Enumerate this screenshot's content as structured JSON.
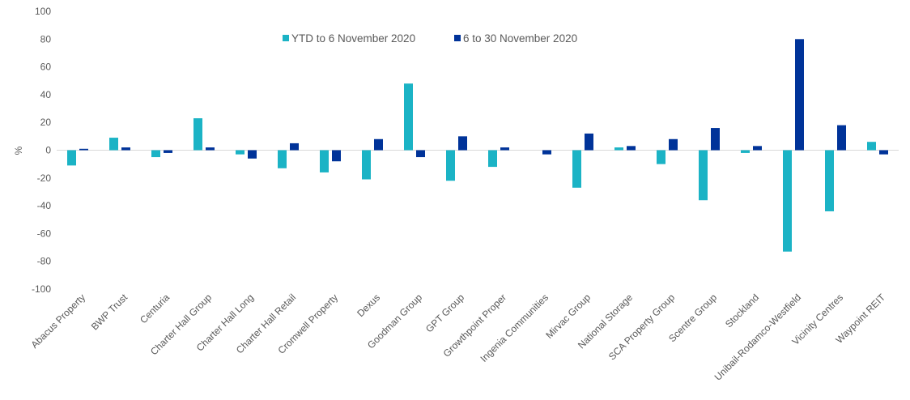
{
  "chart_data": {
    "type": "bar",
    "title": "",
    "xlabel": "",
    "ylabel": "%",
    "ylim": [
      -100,
      100
    ],
    "yticks": [
      100,
      80,
      60,
      40,
      20,
      0,
      -20,
      -40,
      -60,
      -80,
      -100
    ],
    "grid": false,
    "legend_position": "top-center",
    "categories": [
      "Abacus Property",
      "BWP Trust",
      "Centuria",
      "Charter Hall Group",
      "Charter Hall Long",
      "Charter Hall Retail",
      "Cromwell Property",
      "Dexus",
      "Goodman Group",
      "GPT Group",
      "Growthpoint Proper",
      "Ingenia Communities",
      "Mirvac Group",
      "National Storage",
      "SCA Property Group",
      "Scentre Group",
      "Stockland",
      "Unibail-Rodamco-Westfield",
      "Vicinity Centres",
      "Waypoint REIT"
    ],
    "series": [
      {
        "name": "YTD to 6 November 2020",
        "color": "#1BB3C5",
        "values": [
          -11,
          9,
          -5,
          23,
          -3,
          -13,
          -16,
          -21,
          48,
          -22,
          -12,
          0,
          -27,
          2,
          -10,
          -36,
          -2,
          -73,
          -44,
          6
        ]
      },
      {
        "name": "6 to 30 November 2020",
        "color": "#003399",
        "values": [
          1,
          2,
          -2,
          2,
          -6,
          5,
          -8,
          8,
          -5,
          10,
          2,
          -3,
          12,
          3,
          8,
          16,
          3,
          80,
          18,
          -3
        ]
      }
    ]
  }
}
